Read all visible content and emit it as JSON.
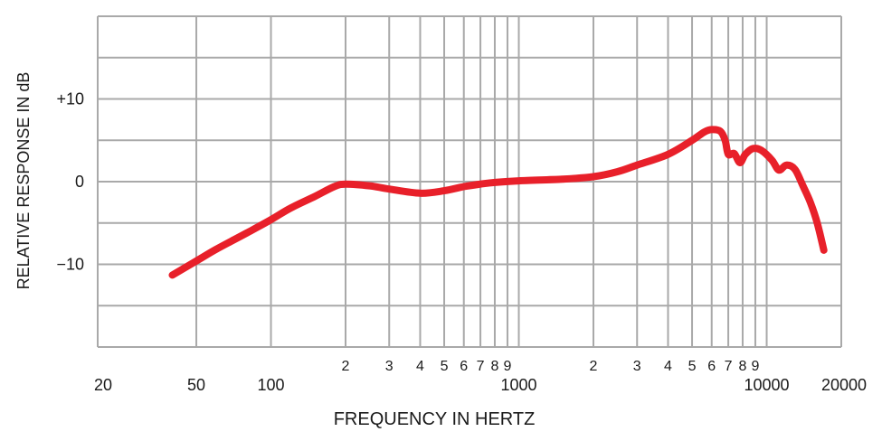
{
  "chart_data": {
    "type": "line",
    "xscale": "log",
    "xlim": [
      20,
      20000
    ],
    "ylim": [
      -20,
      20
    ],
    "grid": true,
    "xlabel": "FREQUENCY IN HERTZ",
    "ylabel": "RELATIVE RESPONSE IN dB",
    "x_major_ticks": [
      {
        "value": 20,
        "label": "20"
      },
      {
        "value": 50,
        "label": "50"
      },
      {
        "value": 100,
        "label": "100"
      },
      {
        "value": 1000,
        "label": "1000"
      },
      {
        "value": 10000,
        "label": "10000"
      },
      {
        "value": 20000,
        "label": "20000"
      }
    ],
    "x_minor_ticks": [
      {
        "value": 200,
        "label": "2"
      },
      {
        "value": 300,
        "label": "3"
      },
      {
        "value": 400,
        "label": "4"
      },
      {
        "value": 500,
        "label": "5"
      },
      {
        "value": 600,
        "label": "6"
      },
      {
        "value": 700,
        "label": "7"
      },
      {
        "value": 800,
        "label": "8"
      },
      {
        "value": 900,
        "label": "9"
      },
      {
        "value": 2000,
        "label": "2"
      },
      {
        "value": 3000,
        "label": "3"
      },
      {
        "value": 4000,
        "label": "4"
      },
      {
        "value": 5000,
        "label": "5"
      },
      {
        "value": 6000,
        "label": "6"
      },
      {
        "value": 7000,
        "label": "7"
      },
      {
        "value": 8000,
        "label": "8"
      },
      {
        "value": 9000,
        "label": "9"
      }
    ],
    "x_gridlines": [
      20,
      50,
      100,
      200,
      300,
      400,
      500,
      600,
      700,
      800,
      900,
      1000,
      2000,
      3000,
      4000,
      5000,
      6000,
      7000,
      8000,
      9000,
      10000,
      20000
    ],
    "y_ticks": [
      {
        "value": 10,
        "label": "+10"
      },
      {
        "value": 0,
        "label": "0"
      },
      {
        "value": -10,
        "label": "−10"
      }
    ],
    "y_gridlines": [
      -20,
      -15,
      -10,
      -5,
      0,
      5,
      10,
      15,
      20
    ],
    "series": [
      {
        "color": "#e8202a",
        "points": [
          [
            40,
            -11.3
          ],
          [
            50,
            -9.6
          ],
          [
            60,
            -8.2
          ],
          [
            80,
            -6.2
          ],
          [
            100,
            -4.6
          ],
          [
            120,
            -3.2
          ],
          [
            150,
            -1.8
          ],
          [
            180,
            -0.6
          ],
          [
            200,
            -0.3
          ],
          [
            250,
            -0.5
          ],
          [
            300,
            -0.9
          ],
          [
            400,
            -1.4
          ],
          [
            500,
            -1.1
          ],
          [
            600,
            -0.6
          ],
          [
            700,
            -0.3
          ],
          [
            800,
            -0.1
          ],
          [
            1000,
            0.1
          ],
          [
            1500,
            0.3
          ],
          [
            2000,
            0.6
          ],
          [
            2500,
            1.2
          ],
          [
            3000,
            2.0
          ],
          [
            4000,
            3.3
          ],
          [
            5000,
            5.0
          ],
          [
            5600,
            6.0
          ],
          [
            6000,
            6.3
          ],
          [
            6500,
            6.1
          ],
          [
            6800,
            5.0
          ],
          [
            7000,
            3.3
          ],
          [
            7400,
            3.4
          ],
          [
            7800,
            2.3
          ],
          [
            8200,
            3.3
          ],
          [
            8800,
            4.0
          ],
          [
            9500,
            3.8
          ],
          [
            10500,
            2.6
          ],
          [
            11200,
            1.4
          ],
          [
            12000,
            2.0
          ],
          [
            13000,
            1.5
          ],
          [
            14000,
            -0.5
          ],
          [
            15000,
            -2.5
          ],
          [
            16000,
            -5.0
          ],
          [
            17000,
            -8.3
          ]
        ]
      }
    ]
  }
}
